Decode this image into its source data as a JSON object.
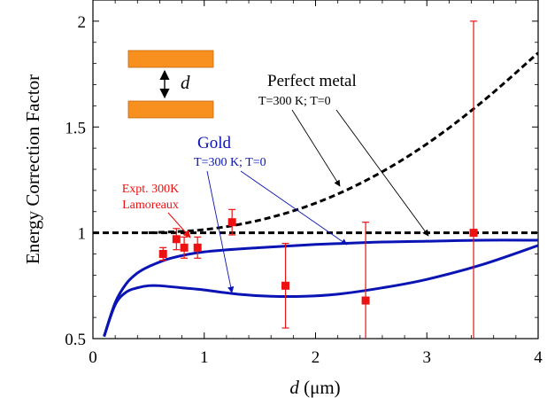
{
  "chart_data": {
    "type": "line",
    "xlabel": {
      "italic": "d",
      "rest": " (μm)"
    },
    "ylabel": "Energy Correction Factor",
    "xlim": [
      0,
      4
    ],
    "ylim": [
      0.5,
      2.1
    ],
    "x_ticks": [
      "0",
      "1",
      "2",
      "3",
      "4"
    ],
    "x_tick_values": [
      0,
      1,
      2,
      3,
      4
    ],
    "y_ticks": [
      "0.5",
      "1",
      "1.5",
      "2"
    ],
    "y_tick_values": [
      0.5,
      1,
      1.5,
      2
    ],
    "grid": false,
    "series": [
      {
        "name": "Perfect metal T=300 K",
        "style": "dashed",
        "color": "#000000",
        "x": [
          0.5,
          1.0,
          1.5,
          2.0,
          2.5,
          3.0,
          3.5,
          4.0
        ],
        "y": [
          1.0,
          1.015,
          1.06,
          1.14,
          1.26,
          1.42,
          1.62,
          1.85
        ]
      },
      {
        "name": "Perfect metal T=0",
        "style": "dashed",
        "color": "#000000",
        "x": [
          0.0,
          4.0
        ],
        "y": [
          1.0,
          1.0
        ]
      },
      {
        "name": "Gold T=300 K",
        "style": "solid",
        "color": "#0a14b4",
        "x": [
          0.1,
          0.2,
          0.3,
          0.4,
          0.5,
          0.6,
          0.8,
          1.0,
          1.3,
          1.6,
          1.9,
          2.2,
          2.6,
          3.0,
          3.5,
          4.0
        ],
        "y": [
          0.51,
          0.66,
          0.72,
          0.74,
          0.75,
          0.75,
          0.74,
          0.73,
          0.71,
          0.7,
          0.7,
          0.71,
          0.74,
          0.78,
          0.85,
          0.94
        ]
      },
      {
        "name": "Gold T=0",
        "style": "solid",
        "color": "#0a14b4",
        "x": [
          0.1,
          0.2,
          0.3,
          0.4,
          0.5,
          0.7,
          1.0,
          1.5,
          2.0,
          2.5,
          3.0,
          3.5,
          4.0
        ],
        "y": [
          0.51,
          0.67,
          0.76,
          0.81,
          0.84,
          0.88,
          0.91,
          0.93,
          0.945,
          0.955,
          0.96,
          0.965,
          0.965
        ]
      }
    ],
    "experiment": {
      "name": "Expt. 300K Lamoreaux",
      "color": "#ee1111",
      "points": [
        {
          "x": 0.63,
          "y": 0.9,
          "err": 0.03
        },
        {
          "x": 0.75,
          "y": 0.97,
          "err": 0.05
        },
        {
          "x": 0.82,
          "y": 0.93,
          "err": 0.05
        },
        {
          "x": 0.94,
          "y": 0.93,
          "err": 0.05
        },
        {
          "x": 1.25,
          "y": 1.05,
          "err": 0.06
        },
        {
          "x": 1.73,
          "y": 0.75,
          "err": 0.2
        },
        {
          "x": 2.45,
          "y": 0.68,
          "err": 0.37
        },
        {
          "x": 3.42,
          "y": 1.0,
          "err": 1.0
        }
      ]
    },
    "annotations": {
      "perfect_metal_title": "Perfect metal",
      "perfect_metal_sub": "T=300 K; T=0",
      "gold_title": "Gold",
      "gold_sub": "T=300 K; T=0",
      "expt_line1": "Expt. 300K",
      "expt_line2": "Lamoreaux",
      "inset_label": "d"
    },
    "colors": {
      "plate": "#f7901e",
      "plate_edge": "#c86a10",
      "gold_curve": "#0a14b4",
      "expt": "#ee1111"
    }
  }
}
